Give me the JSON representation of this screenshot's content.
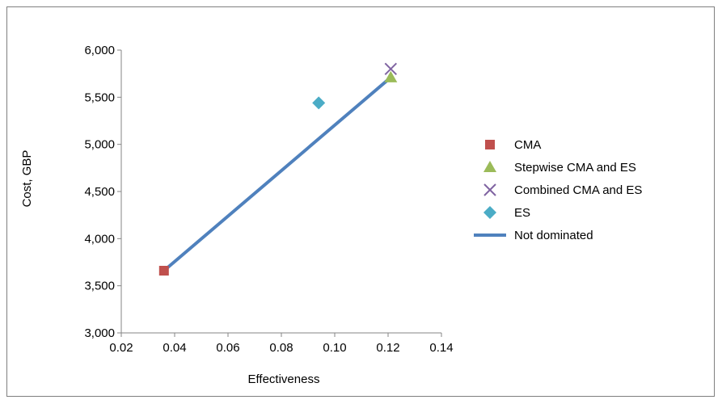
{
  "chart_data": {
    "type": "scatter",
    "xlabel": "Effectiveness",
    "ylabel": "Cost, GBP",
    "xlim": [
      0.02,
      0.14
    ],
    "ylim": [
      3000,
      6000
    ],
    "x_ticks": [
      "0.02",
      "0.04",
      "0.06",
      "0.08",
      "0.10",
      "0.12",
      "0.14"
    ],
    "y_ticks": [
      "3,000",
      "3,500",
      "4,000",
      "4,500",
      "5,000",
      "5,500",
      "6,000"
    ],
    "x_tick_values": [
      0.02,
      0.04,
      0.06,
      0.08,
      0.1,
      0.12,
      0.14
    ],
    "y_tick_values": [
      3000,
      3500,
      4000,
      4500,
      5000,
      5500,
      6000
    ],
    "grid": false,
    "legend_position": "right",
    "series": [
      {
        "name": "CMA",
        "marker": "square",
        "color": "#c0504d",
        "points": [
          {
            "x": 0.036,
            "y": 3660
          }
        ]
      },
      {
        "name": "Stepwise CMA and ES",
        "marker": "triangle",
        "color": "#9bbb59",
        "points": [
          {
            "x": 0.121,
            "y": 5710
          }
        ]
      },
      {
        "name": "Combined CMA and ES",
        "marker": "x",
        "color": "#8064a2",
        "points": [
          {
            "x": 0.121,
            "y": 5800
          }
        ]
      },
      {
        "name": "ES",
        "marker": "diamond",
        "color": "#4bacc6",
        "points": [
          {
            "x": 0.094,
            "y": 5440
          }
        ]
      },
      {
        "name": "Not dominated",
        "marker": "line",
        "color": "#4f81bd",
        "points": [
          {
            "x": 0.036,
            "y": 3660
          },
          {
            "x": 0.121,
            "y": 5710
          }
        ]
      }
    ]
  }
}
